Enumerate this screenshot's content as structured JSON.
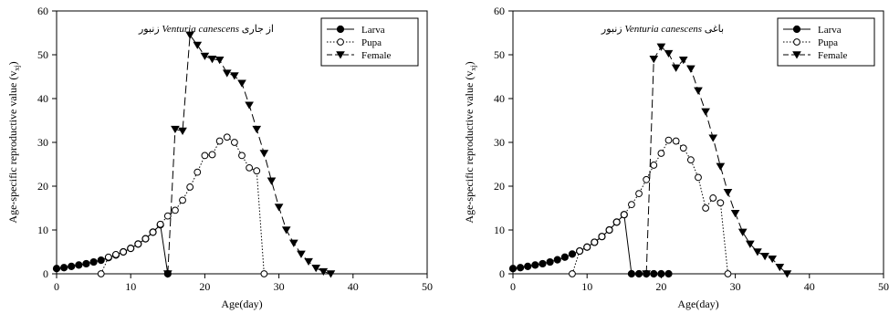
{
  "chart_data": [
    {
      "type": "line",
      "title_latin": "Venturia canescens",
      "title_before": "زنبور",
      "title_after": "از جاری",
      "xlabel": "Age(day)",
      "ylabel": "Age-specific reproductive value (v",
      "ylabel_sub": "xj",
      "ylabel_end": ")",
      "xlim": [
        0,
        50
      ],
      "ylim": [
        0,
        60
      ],
      "xticks": [
        0,
        10,
        20,
        30,
        40,
        50
      ],
      "yticks": [
        0,
        10,
        20,
        30,
        40,
        50,
        60
      ],
      "legend_position": "top-right",
      "series": [
        {
          "name": "Larva",
          "marker": "filled-circle",
          "line": "solid",
          "points": [
            [
              0,
              1.2
            ],
            [
              1,
              1.4
            ],
            [
              2,
              1.7
            ],
            [
              3,
              2.0
            ],
            [
              4,
              2.3
            ],
            [
              5,
              2.7
            ],
            [
              6,
              3.1
            ],
            [
              7,
              3.7
            ],
            [
              8,
              4.3
            ],
            [
              9,
              5.0
            ],
            [
              10,
              5.8
            ],
            [
              11,
              6.8
            ],
            [
              12,
              8.0
            ],
            [
              13,
              9.5
            ],
            [
              14,
              11.2
            ],
            [
              15,
              0
            ]
          ]
        },
        {
          "name": "Pupa",
          "marker": "open-circle",
          "line": "dotted",
          "points": [
            [
              6,
              0
            ],
            [
              7,
              3.8
            ],
            [
              8,
              4.4
            ],
            [
              9,
              5.0
            ],
            [
              10,
              5.8
            ],
            [
              11,
              6.8
            ],
            [
              12,
              8.0
            ],
            [
              13,
              9.5
            ],
            [
              14,
              11.3
            ],
            [
              15,
              13.2
            ],
            [
              16,
              14.5
            ],
            [
              17,
              16.8
            ],
            [
              18,
              19.8
            ],
            [
              19,
              23.2
            ],
            [
              20,
              27.0
            ],
            [
              21,
              27.2
            ],
            [
              22,
              30.3
            ],
            [
              23,
              31.2
            ],
            [
              24,
              30.0
            ],
            [
              25,
              27.0
            ],
            [
              26,
              24.2
            ],
            [
              27,
              23.5
            ],
            [
              28,
              0
            ]
          ]
        },
        {
          "name": "Female",
          "marker": "filled-triangle-down",
          "line": "dashed",
          "points": [
            [
              15,
              0
            ],
            [
              16,
              33.0
            ],
            [
              17,
              32.6
            ],
            [
              18,
              54.5
            ],
            [
              19,
              52.2
            ],
            [
              20,
              49.7
            ],
            [
              21,
              49.0
            ],
            [
              22,
              48.8
            ],
            [
              23,
              45.8
            ],
            [
              24,
              45.2
            ],
            [
              25,
              43.5
            ],
            [
              26,
              38.5
            ],
            [
              27,
              33.0
            ],
            [
              28,
              27.5
            ],
            [
              29,
              21.2
            ],
            [
              30,
              15.2
            ],
            [
              31,
              10.0
            ],
            [
              32,
              7.0
            ],
            [
              33,
              4.5
            ],
            [
              34,
              2.8
            ],
            [
              35,
              1.3
            ],
            [
              36,
              0.5
            ],
            [
              37,
              0
            ]
          ]
        }
      ]
    },
    {
      "type": "line",
      "title_latin": "Venturia canescens",
      "title_before": "زنبور",
      "title_after": "باغی",
      "xlabel": "Age(day)",
      "ylabel": "Age-specific reproductive value (v",
      "ylabel_sub": "xj",
      "ylabel_end": ")",
      "xlim": [
        0,
        50
      ],
      "ylim": [
        0,
        60
      ],
      "xticks": [
        0,
        10,
        20,
        30,
        40,
        50
      ],
      "yticks": [
        0,
        10,
        20,
        30,
        40,
        50,
        60
      ],
      "legend_position": "top-right",
      "series": [
        {
          "name": "Larva",
          "marker": "filled-circle",
          "line": "solid",
          "points": [
            [
              0,
              1.2
            ],
            [
              1,
              1.4
            ],
            [
              2,
              1.7
            ],
            [
              3,
              2.0
            ],
            [
              4,
              2.3
            ],
            [
              5,
              2.7
            ],
            [
              6,
              3.2
            ],
            [
              7,
              3.8
            ],
            [
              8,
              4.5
            ],
            [
              9,
              5.2
            ],
            [
              10,
              6.1
            ],
            [
              11,
              7.2
            ],
            [
              12,
              8.5
            ],
            [
              13,
              10.0
            ],
            [
              14,
              11.8
            ],
            [
              15,
              13.5
            ],
            [
              16,
              0
            ],
            [
              17,
              0
            ],
            [
              18,
              0
            ],
            [
              19,
              0
            ],
            [
              20,
              0
            ],
            [
              21,
              0
            ]
          ]
        },
        {
          "name": "Pupa",
          "marker": "open-circle",
          "line": "dotted",
          "points": [
            [
              8,
              0
            ],
            [
              9,
              5.2
            ],
            [
              10,
              6.1
            ],
            [
              11,
              7.2
            ],
            [
              12,
              8.5
            ],
            [
              13,
              10.0
            ],
            [
              14,
              11.8
            ],
            [
              15,
              13.5
            ],
            [
              16,
              15.8
            ],
            [
              17,
              18.3
            ],
            [
              18,
              21.5
            ],
            [
              19,
              24.8
            ],
            [
              20,
              27.5
            ],
            [
              21,
              30.5
            ],
            [
              22,
              30.3
            ],
            [
              23,
              28.7
            ],
            [
              24,
              26.0
            ],
            [
              25,
              22.0
            ],
            [
              26,
              15.0
            ],
            [
              27,
              17.3
            ],
            [
              28,
              16.2
            ],
            [
              29,
              0
            ]
          ]
        },
        {
          "name": "Female",
          "marker": "filled-triangle-down",
          "line": "dashed",
          "points": [
            [
              18,
              0
            ],
            [
              19,
              49.0
            ],
            [
              20,
              51.8
            ],
            [
              21,
              50.3
            ],
            [
              22,
              47.0
            ],
            [
              23,
              48.8
            ],
            [
              24,
              46.8
            ],
            [
              25,
              41.8
            ],
            [
              26,
              37.0
            ],
            [
              27,
              31.0
            ],
            [
              28,
              24.5
            ],
            [
              29,
              18.6
            ],
            [
              30,
              13.8
            ],
            [
              31,
              9.5
            ],
            [
              32,
              6.8
            ],
            [
              33,
              5.0
            ],
            [
              34,
              4.0
            ],
            [
              35,
              3.4
            ],
            [
              36,
              1.5
            ],
            [
              37,
              0
            ]
          ]
        }
      ]
    }
  ]
}
